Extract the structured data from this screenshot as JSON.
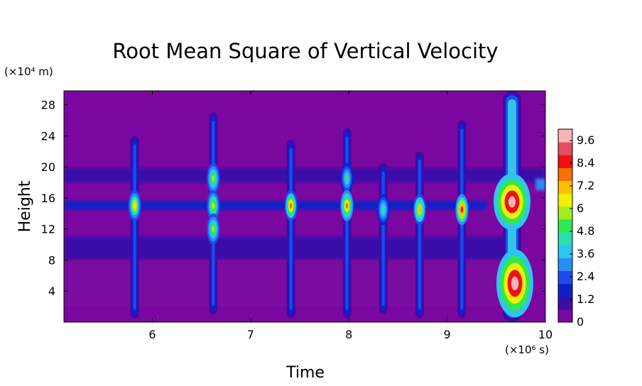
{
  "chart_data": {
    "type": "heatmap",
    "title": "Root Mean Square of Vertical Velocity",
    "xlabel": "Time",
    "ylabel": "Height",
    "x_unit": "(×10⁶ s)",
    "y_unit": "(×10⁴ m)",
    "xlim": [
      5.1,
      10.0
    ],
    "ylim": [
      0.0,
      29.8
    ],
    "x_ticks": [
      "6",
      "7",
      "8",
      "9",
      "10"
    ],
    "y_ticks": [
      "4",
      "8",
      "12",
      "16",
      "20",
      "24",
      "28"
    ],
    "colorbar": {
      "min": 0,
      "max": 10.2,
      "ticks": [
        "0",
        "1.2",
        "2.4",
        "3.6",
        "4.8",
        "6",
        "7.2",
        "8.4",
        "9.6"
      ],
      "colors": [
        "#7a08a0",
        "#3a0ca8",
        "#1020c8",
        "#1e4cec",
        "#2c8cf6",
        "#30c4f0",
        "#28e0b0",
        "#30e850",
        "#a0ee20",
        "#f0f000",
        "#f8c000",
        "#f87000",
        "#f01010",
        "#e05060",
        "#f8b4b4"
      ]
    },
    "background_value": 0.2,
    "bands": [
      {
        "y": [
          18.0,
          19.8
        ],
        "x": [
          5.1,
          10.0
        ],
        "value": 1.2
      },
      {
        "y": [
          14.5,
          15.6
        ],
        "x": [
          5.1,
          9.4
        ],
        "value": 1.5
      },
      {
        "y": [
          8.0,
          11.0
        ],
        "x": [
          5.1,
          9.6
        ],
        "value": 1.0
      },
      {
        "y": [
          2.0,
          8.0
        ],
        "x": [
          5.1,
          9.6
        ],
        "value": 0.6
      },
      {
        "y": [
          17.0,
          18.5
        ],
        "x": [
          9.9,
          10.0
        ],
        "value": 3.0
      }
    ],
    "bursts": [
      {
        "x": 5.82,
        "y_range": [
          0.5,
          24.0
        ],
        "peaks": [
          {
            "y": 15.0,
            "value": 6.5
          }
        ]
      },
      {
        "x": 6.62,
        "y_range": [
          1.0,
          27.0
        ],
        "peaks": [
          {
            "y": 18.5,
            "value": 6.0
          },
          {
            "y": 15.0,
            "value": 6.2
          },
          {
            "y": 12.0,
            "value": 6.0
          }
        ]
      },
      {
        "x": 7.41,
        "y_range": [
          0.5,
          23.5
        ],
        "peaks": [
          {
            "y": 15.0,
            "value": 7.5
          }
        ]
      },
      {
        "x": 7.98,
        "y_range": [
          0.5,
          25.0
        ],
        "peaks": [
          {
            "y": 18.5,
            "value": 4.8
          },
          {
            "y": 15.0,
            "value": 7.8
          }
        ]
      },
      {
        "x": 8.35,
        "y_range": [
          1.0,
          20.5
        ],
        "peaks": [
          {
            "y": 14.5,
            "value": 4.5
          }
        ]
      },
      {
        "x": 8.72,
        "y_range": [
          0.5,
          22.0
        ],
        "peaks": [
          {
            "y": 14.5,
            "value": 7.0
          }
        ]
      },
      {
        "x": 9.15,
        "y_range": [
          0.5,
          26.0
        ],
        "peaks": [
          {
            "y": 14.5,
            "value": 8.2
          }
        ]
      },
      {
        "x": 9.66,
        "y_range": [
          0.0,
          29.8
        ],
        "peaks": [
          {
            "y": 15.5,
            "value": 9.8
          },
          {
            "y": 5.0,
            "value": 10.0
          }
        ]
      }
    ]
  }
}
